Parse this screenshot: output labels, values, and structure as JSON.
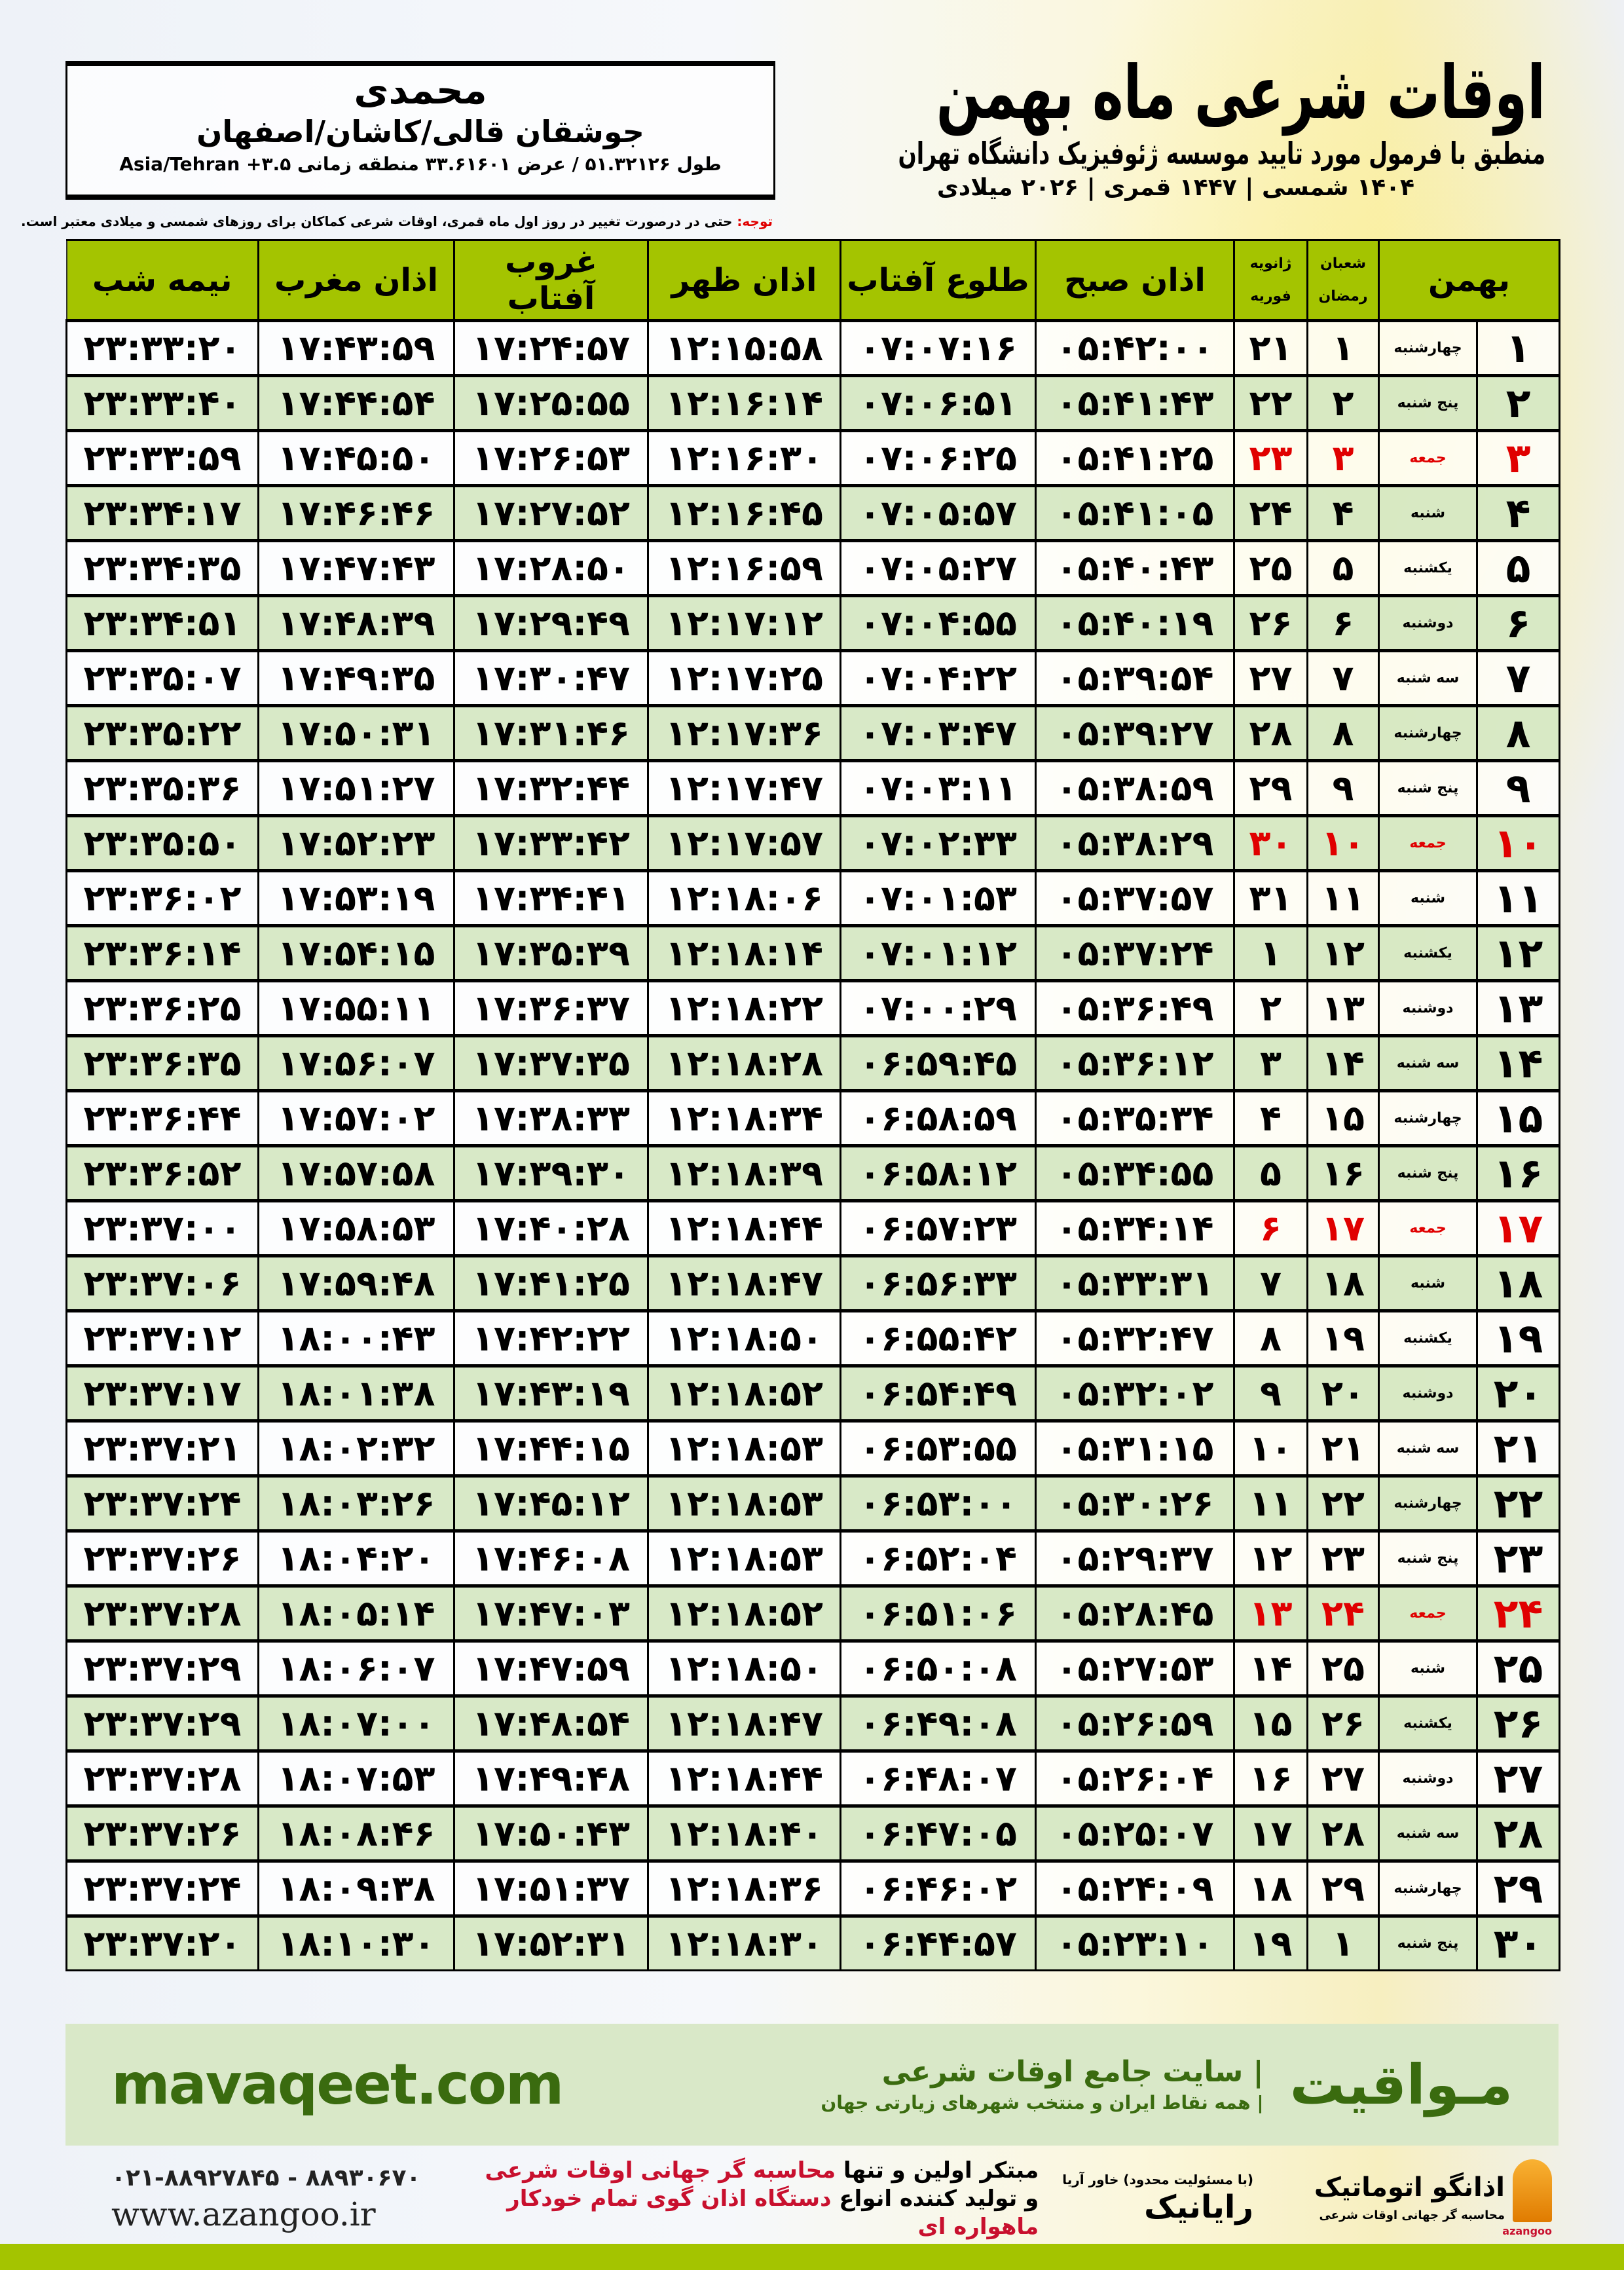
{
  "info": {
    "name": "محمدی",
    "place": "جوشقان قالی/کاشان/اصفهان",
    "coords": "طول ۵۱.۳۲۱۲۶ / عرض ۳۳.۶۱۶۰۱ منطقه زمانی ۳.۵+ Asia/Tehran"
  },
  "header": {
    "title": "اوقات شرعی ماه بهمن",
    "subtitle": "منطبق با فرمول مورد تایید موسسه ژئوفیزیک دانشگاه تهران",
    "dates": "۱۴۰۴ شمسی | ۱۴۴۷ قمری | ۲۰۲۶ میلادی",
    "note_label": "توجه:",
    "note_text": " حتی در درصورت تغییر در روز اول ماه قمری، اوقات شرعی کماکان برای روزهای شمسی و میلادی معتبر است."
  },
  "table": {
    "headers": {
      "month": "بهمن",
      "hijri_top": "شعبان",
      "hijri_bottom": "رمضان",
      "greg_top": "ژانویه",
      "greg_bottom": "فوریه",
      "fajr": "اذان صبح",
      "sunrise": "طلوع آفتاب",
      "dhuhr": "اذان ظهر",
      "sunset": "غروب آفتاب",
      "maghrib": "اذان مغرب",
      "midnight": "نیمه شب"
    },
    "friday_color": "#e00000",
    "rows": [
      [
        "۱",
        "چهارشنبه",
        "۱",
        "۲۱",
        "۰۵:۴۲:۰۰",
        "۰۷:۰۷:۱۶",
        "۱۲:۱۵:۵۸",
        "۱۷:۲۴:۵۷",
        "۱۷:۴۳:۵۹",
        "۲۳:۳۳:۲۰"
      ],
      [
        "۲",
        "پنج شنبه",
        "۲",
        "۲۲",
        "۰۵:۴۱:۴۳",
        "۰۷:۰۶:۵۱",
        "۱۲:۱۶:۱۴",
        "۱۷:۲۵:۵۵",
        "۱۷:۴۴:۵۴",
        "۲۳:۳۳:۴۰"
      ],
      [
        "۳",
        "جمعه",
        "۳",
        "۲۳",
        "۰۵:۴۱:۲۵",
        "۰۷:۰۶:۲۵",
        "۱۲:۱۶:۳۰",
        "۱۷:۲۶:۵۳",
        "۱۷:۴۵:۵۰",
        "۲۳:۳۳:۵۹"
      ],
      [
        "۴",
        "شنبه",
        "۴",
        "۲۴",
        "۰۵:۴۱:۰۵",
        "۰۷:۰۵:۵۷",
        "۱۲:۱۶:۴۵",
        "۱۷:۲۷:۵۲",
        "۱۷:۴۶:۴۶",
        "۲۳:۳۴:۱۷"
      ],
      [
        "۵",
        "یکشنبه",
        "۵",
        "۲۵",
        "۰۵:۴۰:۴۳",
        "۰۷:۰۵:۲۷",
        "۱۲:۱۶:۵۹",
        "۱۷:۲۸:۵۰",
        "۱۷:۴۷:۴۳",
        "۲۳:۳۴:۳۵"
      ],
      [
        "۶",
        "دوشنبه",
        "۶",
        "۲۶",
        "۰۵:۴۰:۱۹",
        "۰۷:۰۴:۵۵",
        "۱۲:۱۷:۱۲",
        "۱۷:۲۹:۴۹",
        "۱۷:۴۸:۳۹",
        "۲۳:۳۴:۵۱"
      ],
      [
        "۷",
        "سه شنبه",
        "۷",
        "۲۷",
        "۰۵:۳۹:۵۴",
        "۰۷:۰۴:۲۲",
        "۱۲:۱۷:۲۵",
        "۱۷:۳۰:۴۷",
        "۱۷:۴۹:۳۵",
        "۲۳:۳۵:۰۷"
      ],
      [
        "۸",
        "چهارشنبه",
        "۸",
        "۲۸",
        "۰۵:۳۹:۲۷",
        "۰۷:۰۳:۴۷",
        "۱۲:۱۷:۳۶",
        "۱۷:۳۱:۴۶",
        "۱۷:۵۰:۳۱",
        "۲۳:۳۵:۲۲"
      ],
      [
        "۹",
        "پنج شنبه",
        "۹",
        "۲۹",
        "۰۵:۳۸:۵۹",
        "۰۷:۰۳:۱۱",
        "۱۲:۱۷:۴۷",
        "۱۷:۳۲:۴۴",
        "۱۷:۵۱:۲۷",
        "۲۳:۳۵:۳۶"
      ],
      [
        "۱۰",
        "جمعه",
        "۱۰",
        "۳۰",
        "۰۵:۳۸:۲۹",
        "۰۷:۰۲:۳۳",
        "۱۲:۱۷:۵۷",
        "۱۷:۳۳:۴۲",
        "۱۷:۵۲:۲۳",
        "۲۳:۳۵:۵۰"
      ],
      [
        "۱۱",
        "شنبه",
        "۱۱",
        "۳۱",
        "۰۵:۳۷:۵۷",
        "۰۷:۰۱:۵۳",
        "۱۲:۱۸:۰۶",
        "۱۷:۳۴:۴۱",
        "۱۷:۵۳:۱۹",
        "۲۳:۳۶:۰۲"
      ],
      [
        "۱۲",
        "یکشنبه",
        "۱۲",
        "۱",
        "۰۵:۳۷:۲۴",
        "۰۷:۰۱:۱۲",
        "۱۲:۱۸:۱۴",
        "۱۷:۳۵:۳۹",
        "۱۷:۵۴:۱۵",
        "۲۳:۳۶:۱۴"
      ],
      [
        "۱۳",
        "دوشنبه",
        "۱۳",
        "۲",
        "۰۵:۳۶:۴۹",
        "۰۷:۰۰:۲۹",
        "۱۲:۱۸:۲۲",
        "۱۷:۳۶:۳۷",
        "۱۷:۵۵:۱۱",
        "۲۳:۳۶:۲۵"
      ],
      [
        "۱۴",
        "سه شنبه",
        "۱۴",
        "۳",
        "۰۵:۳۶:۱۲",
        "۰۶:۵۹:۴۵",
        "۱۲:۱۸:۲۸",
        "۱۷:۳۷:۳۵",
        "۱۷:۵۶:۰۷",
        "۲۳:۳۶:۳۵"
      ],
      [
        "۱۵",
        "چهارشنبه",
        "۱۵",
        "۴",
        "۰۵:۳۵:۳۴",
        "۰۶:۵۸:۵۹",
        "۱۲:۱۸:۳۴",
        "۱۷:۳۸:۳۳",
        "۱۷:۵۷:۰۲",
        "۲۳:۳۶:۴۴"
      ],
      [
        "۱۶",
        "پنج شنبه",
        "۱۶",
        "۵",
        "۰۵:۳۴:۵۵",
        "۰۶:۵۸:۱۲",
        "۱۲:۱۸:۳۹",
        "۱۷:۳۹:۳۰",
        "۱۷:۵۷:۵۸",
        "۲۳:۳۶:۵۲"
      ],
      [
        "۱۷",
        "جمعه",
        "۱۷",
        "۶",
        "۰۵:۳۴:۱۴",
        "۰۶:۵۷:۲۳",
        "۱۲:۱۸:۴۴",
        "۱۷:۴۰:۲۸",
        "۱۷:۵۸:۵۳",
        "۲۳:۳۷:۰۰"
      ],
      [
        "۱۸",
        "شنبه",
        "۱۸",
        "۷",
        "۰۵:۳۳:۳۱",
        "۰۶:۵۶:۳۳",
        "۱۲:۱۸:۴۷",
        "۱۷:۴۱:۲۵",
        "۱۷:۵۹:۴۸",
        "۲۳:۳۷:۰۶"
      ],
      [
        "۱۹",
        "یکشنبه",
        "۱۹",
        "۸",
        "۰۵:۳۲:۴۷",
        "۰۶:۵۵:۴۲",
        "۱۲:۱۸:۵۰",
        "۱۷:۴۲:۲۲",
        "۱۸:۰۰:۴۳",
        "۲۳:۳۷:۱۲"
      ],
      [
        "۲۰",
        "دوشنبه",
        "۲۰",
        "۹",
        "۰۵:۳۲:۰۲",
        "۰۶:۵۴:۴۹",
        "۱۲:۱۸:۵۲",
        "۱۷:۴۳:۱۹",
        "۱۸:۰۱:۳۸",
        "۲۳:۳۷:۱۷"
      ],
      [
        "۲۱",
        "سه شنبه",
        "۲۱",
        "۱۰",
        "۰۵:۳۱:۱۵",
        "۰۶:۵۳:۵۵",
        "۱۲:۱۸:۵۳",
        "۱۷:۴۴:۱۵",
        "۱۸:۰۲:۳۲",
        "۲۳:۳۷:۲۱"
      ],
      [
        "۲۲",
        "چهارشنبه",
        "۲۲",
        "۱۱",
        "۰۵:۳۰:۲۶",
        "۰۶:۵۳:۰۰",
        "۱۲:۱۸:۵۳",
        "۱۷:۴۵:۱۲",
        "۱۸:۰۳:۲۶",
        "۲۳:۳۷:۲۴"
      ],
      [
        "۲۳",
        "پنج شنبه",
        "۲۳",
        "۱۲",
        "۰۵:۲۹:۳۷",
        "۰۶:۵۲:۰۴",
        "۱۲:۱۸:۵۳",
        "۱۷:۴۶:۰۸",
        "۱۸:۰۴:۲۰",
        "۲۳:۳۷:۲۶"
      ],
      [
        "۲۴",
        "جمعه",
        "۲۴",
        "۱۳",
        "۰۵:۲۸:۴۵",
        "۰۶:۵۱:۰۶",
        "۱۲:۱۸:۵۲",
        "۱۷:۴۷:۰۳",
        "۱۸:۰۵:۱۴",
        "۲۳:۳۷:۲۸"
      ],
      [
        "۲۵",
        "شنبه",
        "۲۵",
        "۱۴",
        "۰۵:۲۷:۵۳",
        "۰۶:۵۰:۰۸",
        "۱۲:۱۸:۵۰",
        "۱۷:۴۷:۵۹",
        "۱۸:۰۶:۰۷",
        "۲۳:۳۷:۲۹"
      ],
      [
        "۲۶",
        "یکشنبه",
        "۲۶",
        "۱۵",
        "۰۵:۲۶:۵۹",
        "۰۶:۴۹:۰۸",
        "۱۲:۱۸:۴۷",
        "۱۷:۴۸:۵۴",
        "۱۸:۰۷:۰۰",
        "۲۳:۳۷:۲۹"
      ],
      [
        "۲۷",
        "دوشنبه",
        "۲۷",
        "۱۶",
        "۰۵:۲۶:۰۴",
        "۰۶:۴۸:۰۷",
        "۱۲:۱۸:۴۴",
        "۱۷:۴۹:۴۸",
        "۱۸:۰۷:۵۳",
        "۲۳:۳۷:۲۸"
      ],
      [
        "۲۸",
        "سه شنبه",
        "۲۸",
        "۱۷",
        "۰۵:۲۵:۰۷",
        "۰۶:۴۷:۰۵",
        "۱۲:۱۸:۴۰",
        "۱۷:۵۰:۴۳",
        "۱۸:۰۸:۴۶",
        "۲۳:۳۷:۲۶"
      ],
      [
        "۲۹",
        "چهارشنبه",
        "۲۹",
        "۱۸",
        "۰۵:۲۴:۰۹",
        "۰۶:۴۶:۰۲",
        "۱۲:۱۸:۳۶",
        "۱۷:۵۱:۳۷",
        "۱۸:۰۹:۳۸",
        "۲۳:۳۷:۲۴"
      ],
      [
        "۳۰",
        "پنج شنبه",
        "۱",
        "۱۹",
        "۰۵:۲۳:۱۰",
        "۰۶:۴۴:۵۷",
        "۱۲:۱۸:۳۰",
        "۱۷:۵۲:۳۱",
        "۱۸:۱۰:۳۰",
        "۲۳:۳۷:۲۰"
      ]
    ]
  },
  "footer": {
    "site_logo": "مـواقیت",
    "site_slogan": "| سایت جامع اوقات شرعی",
    "site_slogan_small": "| همه نقاط ایران و منتخب شهرهای زیارتی جهان",
    "site_url": "mavaqeet.com",
    "phones": "۰۲۱-۸۸۹۲۷۸۴۵ - ۸۸۹۳۰۶۷۰",
    "az_url": "www.azangoo.ir",
    "promo_1a": "مبتکر اولین و تنها ",
    "promo_1b": "محاسبه گر جهانی اوقات شرعی",
    "promo_2a": "و تولید کننده انواع ",
    "promo_2b": "دستگاه اذان گوی تمام خودکار ماهواره ای",
    "rayanik": "رایانیک",
    "rayanik_sub": "(با مسئولیت محدود) خاور آریا",
    "az_logo": "اذانگو اتوماتیک",
    "az_logo_sub": "محاسبه گر جهانی اوقات شرعی",
    "az_brand": "azangoo",
    "colors": {
      "header_green": "#a4c400",
      "band": "#d9e8c8",
      "text_green": "#3a6b0f",
      "accent_red": "#c8102e"
    }
  }
}
